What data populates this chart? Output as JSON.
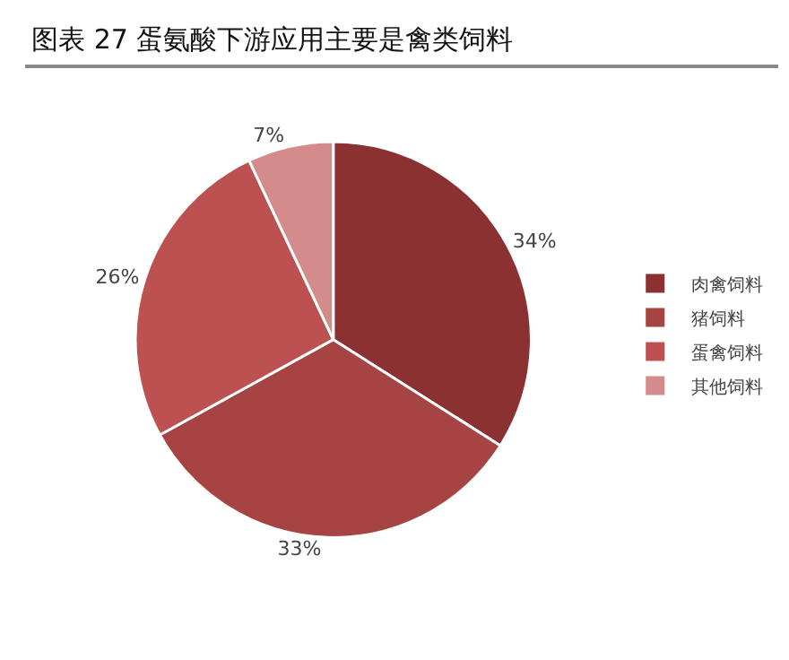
{
  "chart_data": {
    "type": "pie",
    "title": "图表 27 蛋氨酸下游应用主要是禽类饲料",
    "categories": [
      "肉禽饲料",
      "猪饲料",
      "蛋禽饲料",
      "其他饲料"
    ],
    "values": [
      34,
      33,
      26,
      7
    ],
    "value_labels": [
      "34%",
      "33%",
      "26%",
      "7%"
    ],
    "colors": [
      "#8b3131",
      "#a64343",
      "#bd5050",
      "#d48b8b"
    ],
    "legend": "right"
  }
}
